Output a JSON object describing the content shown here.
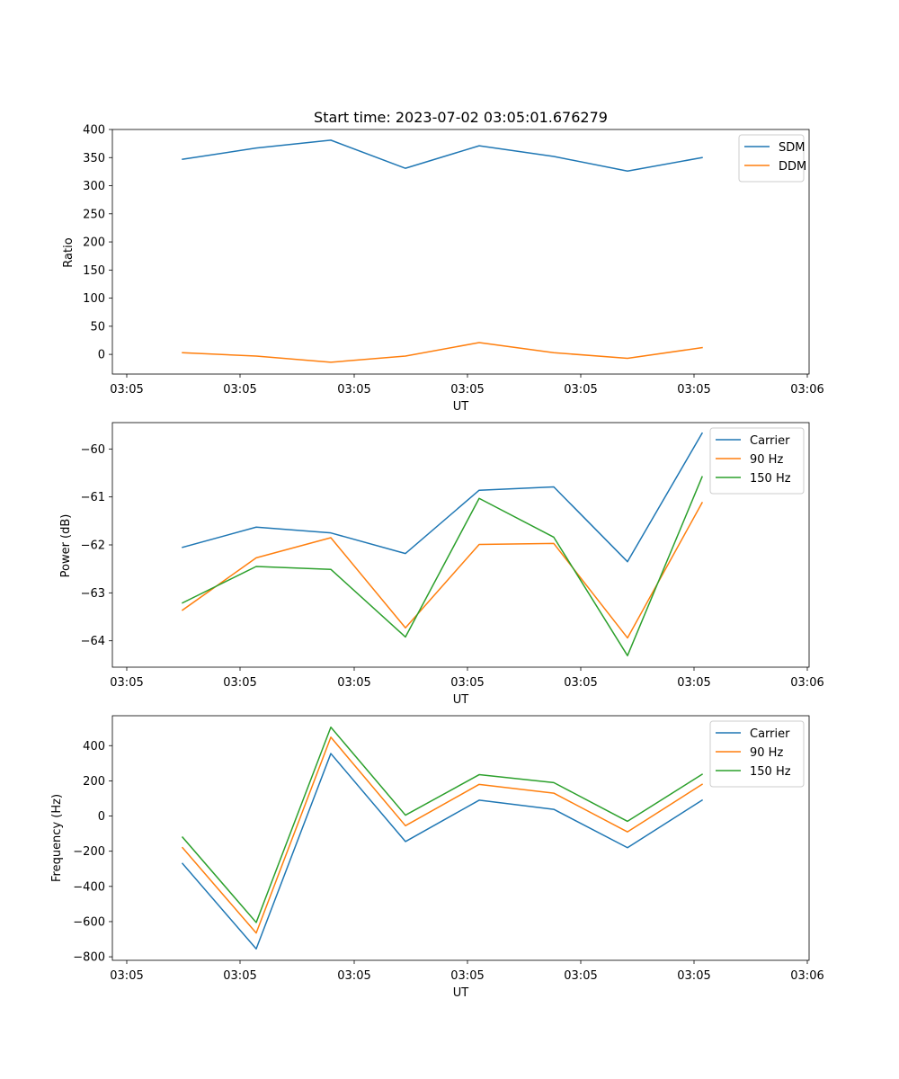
{
  "chart_data": [
    {
      "type": "line",
      "title": "Start time: 2023-07-02 03:05:01.676279",
      "xlabel": "UT",
      "ylabel": "Ratio",
      "x_tick_labels": [
        "03:05",
        "03:05",
        "03:05",
        "03:05",
        "03:05",
        "03:05",
        "03:06"
      ],
      "ylim": [
        -35,
        400
      ],
      "y_ticks": [
        0,
        50,
        100,
        150,
        200,
        250,
        300,
        350,
        400
      ],
      "legend_position": "top-right",
      "series": [
        {
          "name": "SDM",
          "color": "#1f77b4",
          "values": [
            347,
            367,
            381,
            331,
            371,
            352,
            326,
            350
          ]
        },
        {
          "name": "DDM",
          "color": "#ff7f0e",
          "values": [
            3,
            -3,
            -14,
            -3,
            21,
            3,
            -7,
            12
          ]
        }
      ]
    },
    {
      "type": "line",
      "title": "",
      "xlabel": "UT",
      "ylabel": "Power (dB)",
      "x_tick_labels": [
        "03:05",
        "03:05",
        "03:05",
        "03:05",
        "03:05",
        "03:05",
        "03:06"
      ],
      "ylim": [
        -64.55,
        -59.45
      ],
      "y_ticks": [
        -64,
        -63,
        -62,
        -61,
        -60
      ],
      "legend_position": "top-right",
      "series": [
        {
          "name": "Carrier",
          "color": "#1f77b4",
          "values": [
            -62.05,
            -61.63,
            -61.75,
            -62.18,
            -60.86,
            -60.79,
            -62.35,
            -59.67
          ]
        },
        {
          "name": "90 Hz",
          "color": "#ff7f0e",
          "values": [
            -63.36,
            -62.27,
            -61.85,
            -63.73,
            -61.99,
            -61.97,
            -63.94,
            -61.12
          ]
        },
        {
          "name": "150 Hz",
          "color": "#2ca02c",
          "values": [
            -63.21,
            -62.45,
            -62.51,
            -63.92,
            -61.03,
            -61.84,
            -64.31,
            -60.58
          ]
        }
      ]
    },
    {
      "type": "line",
      "title": "",
      "xlabel": "UT",
      "ylabel": "Frequency (Hz)",
      "x_tick_labels": [
        "03:05",
        "03:05",
        "03:05",
        "03:05",
        "03:05",
        "03:05",
        "03:06"
      ],
      "ylim": [
        -820,
        570
      ],
      "y_ticks": [
        -800,
        -600,
        -400,
        -200,
        0,
        200,
        400
      ],
      "legend_position": "top-right",
      "series": [
        {
          "name": "Carrier",
          "color": "#1f77b4",
          "values": [
            -270,
            -755,
            355,
            -145,
            90,
            38,
            -180,
            90
          ]
        },
        {
          "name": "90 Hz",
          "color": "#ff7f0e",
          "values": [
            -180,
            -665,
            448,
            -55,
            180,
            130,
            -90,
            180
          ]
        },
        {
          "name": "150 Hz",
          "color": "#2ca02c",
          "values": [
            -120,
            -605,
            505,
            5,
            235,
            190,
            -30,
            237
          ]
        }
      ]
    }
  ]
}
